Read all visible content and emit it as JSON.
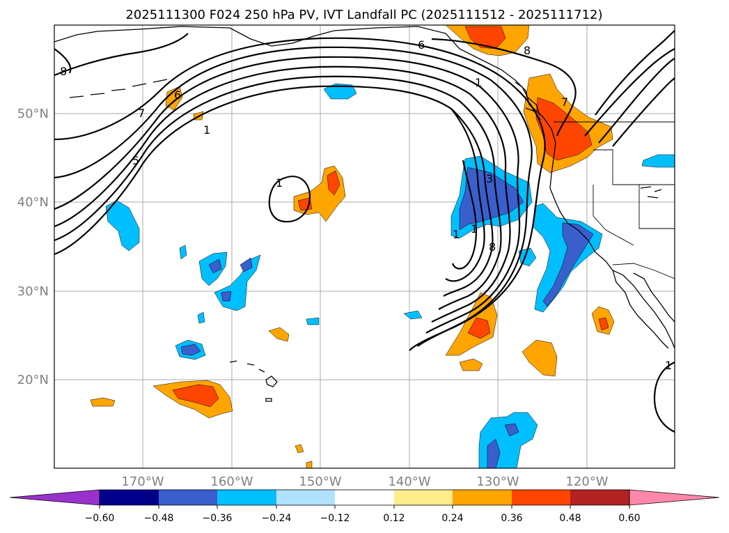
{
  "title": "2025111300 F024 250 hPa PV, IVT Landfall PC (2025111512 - 2025111712)",
  "lat_labels": [
    "50°N",
    "40°N",
    "30°N",
    "20°N"
  ],
  "lon_labels": [
    "170°W",
    "160°W",
    "150°W",
    "140°W",
    "130°W",
    "120°W"
  ],
  "colorbar": {
    "ticks": [
      "−0.60",
      "−0.48",
      "−0.36",
      "−0.24",
      "−0.12",
      "0.12",
      "0.24",
      "0.36",
      "0.48",
      "0.60"
    ],
    "colors": [
      "#9932cc",
      "#00008b",
      "#3a5fcd",
      "#00bfff",
      "#b0e2ff",
      "#ffffff",
      "#ffec8b",
      "#ffa500",
      "#ff4500",
      "#b22222",
      "#ff88aa"
    ]
  },
  "contour_labels": [
    "8",
    "6",
    "7",
    "5",
    "1",
    "1",
    "6",
    "8",
    "7",
    "1",
    "3",
    "1",
    "8",
    "1",
    "1"
  ],
  "colors": {
    "orange": "#ffa500",
    "red": "#ff4500",
    "cyan": "#00bfff",
    "blue": "#3a5fcd"
  }
}
